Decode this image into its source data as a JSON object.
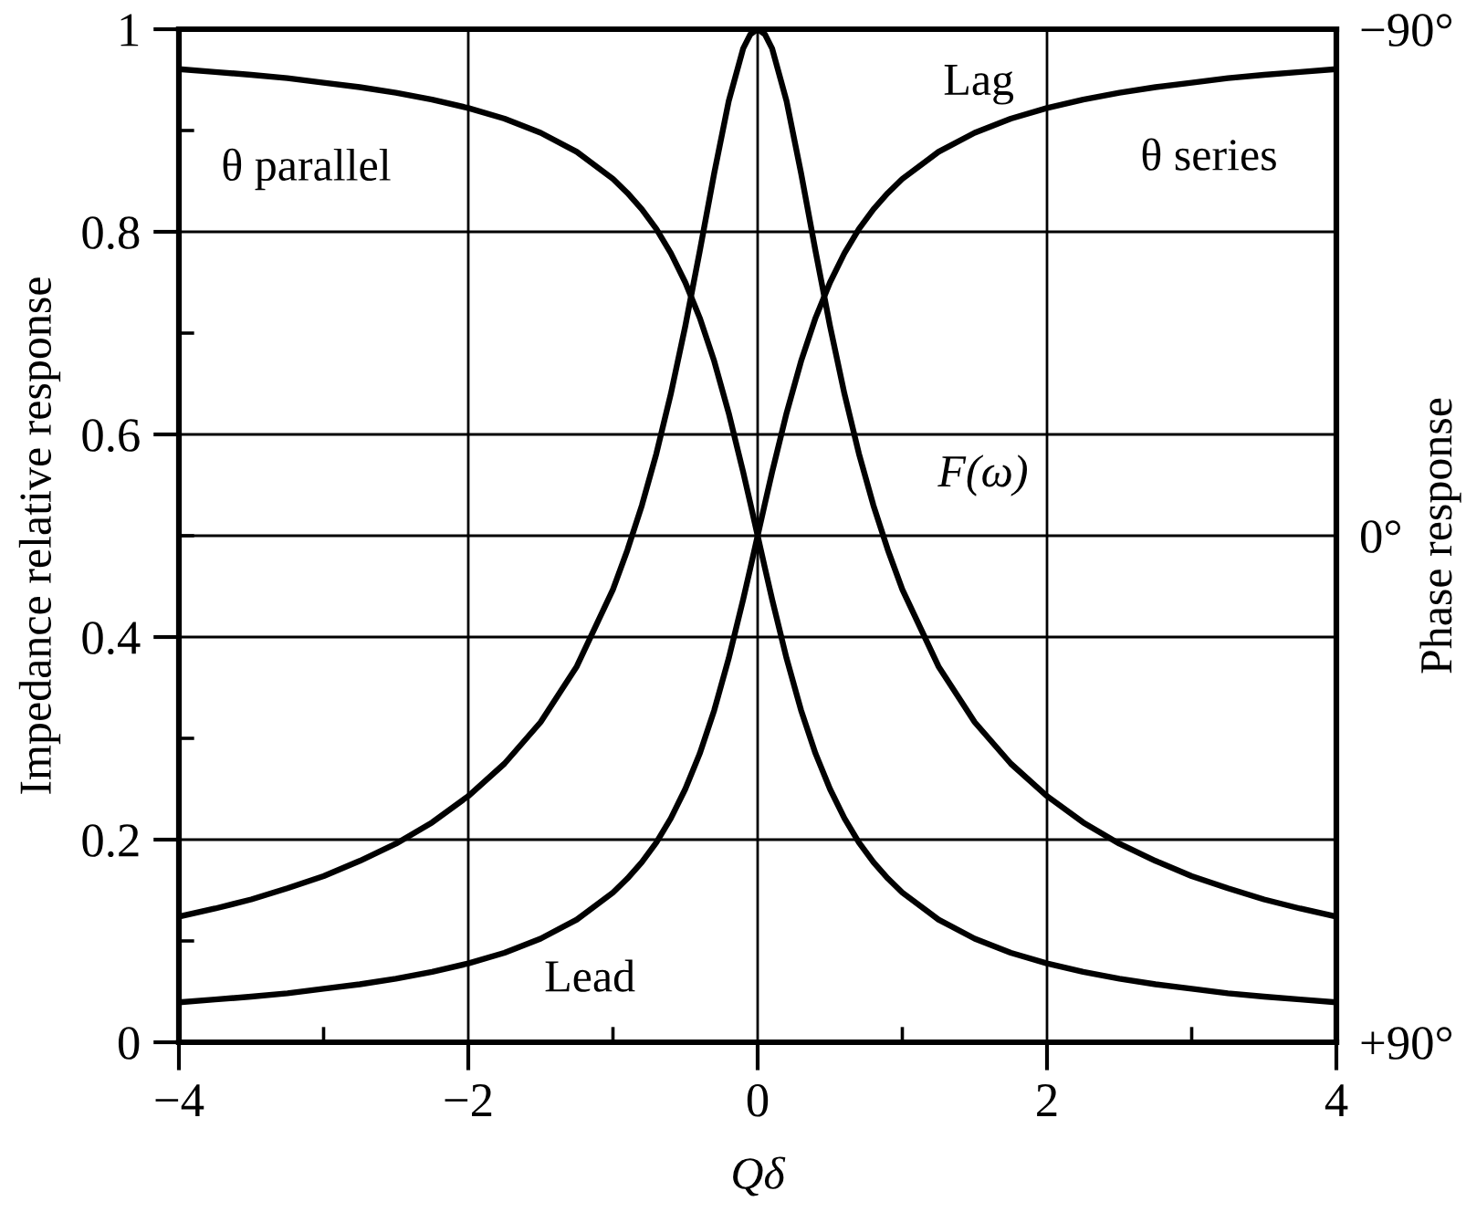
{
  "chart_data": {
    "type": "line",
    "xlabel": "Qδ",
    "ylabel": "Impedance relative response",
    "y2label": "Phase response",
    "x": [
      -4,
      -3.75,
      -3.5,
      -3.25,
      -3,
      -2.75,
      -2.5,
      -2.25,
      -2,
      -1.75,
      -1.5,
      -1.25,
      -1,
      -0.9,
      -0.8,
      -0.7,
      -0.6,
      -0.5,
      -0.4,
      -0.3,
      -0.2,
      -0.1,
      -0.05,
      0,
      0.05,
      0.1,
      0.2,
      0.3,
      0.4,
      0.5,
      0.6,
      0.7,
      0.8,
      0.9,
      1,
      1.25,
      1.5,
      1.75,
      2,
      2.25,
      2.5,
      2.75,
      3,
      3.25,
      3.5,
      3.75,
      4
    ],
    "series": [
      {
        "name": "F(ω)",
        "color": "#000000",
        "values": [
          0.124,
          0.132,
          0.141,
          0.152,
          0.164,
          0.179,
          0.196,
          0.217,
          0.243,
          0.275,
          0.316,
          0.371,
          0.447,
          0.486,
          0.53,
          0.581,
          0.64,
          0.707,
          0.781,
          0.858,
          0.929,
          0.981,
          0.995,
          1,
          0.995,
          0.981,
          0.929,
          0.858,
          0.781,
          0.707,
          0.64,
          0.581,
          0.53,
          0.486,
          0.447,
          0.371,
          0.316,
          0.275,
          0.243,
          0.217,
          0.196,
          0.179,
          0.164,
          0.152,
          0.141,
          0.132,
          0.124
        ]
      },
      {
        "name": "θ parallel",
        "color": "#000000",
        "axis": "y2",
        "values": [
          -82.9,
          -82.4,
          -81.9,
          -81.3,
          -80.5,
          -79.7,
          -78.7,
          -77.5,
          -76.0,
          -74.1,
          -71.6,
          -68.2,
          -63.4,
          -60.9,
          -58.0,
          -54.5,
          -50.2,
          -45.0,
          -38.7,
          -31.0,
          -21.8,
          -11.3,
          -5.7,
          0,
          5.7,
          11.3,
          21.8,
          31.0,
          38.7,
          45.0,
          50.2,
          54.5,
          58.0,
          60.9,
          63.4,
          68.2,
          71.6,
          74.1,
          76.0,
          77.5,
          78.7,
          79.7,
          80.5,
          81.3,
          81.9,
          82.4,
          82.9
        ]
      },
      {
        "name": "θ series",
        "color": "#000000",
        "axis": "y2",
        "values": [
          82.9,
          82.4,
          81.9,
          81.3,
          80.5,
          79.7,
          78.7,
          77.5,
          76.0,
          74.1,
          71.6,
          68.2,
          63.4,
          60.9,
          58.0,
          54.5,
          50.2,
          45.0,
          38.7,
          31.0,
          21.8,
          11.3,
          5.7,
          0,
          -5.7,
          -11.3,
          -21.8,
          -31.0,
          -38.7,
          -45.0,
          -50.2,
          -54.5,
          -58.0,
          -60.9,
          -63.4,
          -68.2,
          -71.6,
          -74.1,
          -76.0,
          -77.5,
          -78.7,
          -79.7,
          -80.5,
          -81.3,
          -81.9,
          -82.4,
          -82.9
        ]
      }
    ],
    "xlim": [
      -4,
      4
    ],
    "xticks": [
      {
        "value": -4,
        "label": "−4"
      },
      {
        "value": -3,
        "label": null
      },
      {
        "value": -2,
        "label": "−2"
      },
      {
        "value": -1,
        "label": null
      },
      0,
      {
        "value": 1,
        "label": null
      },
      2,
      {
        "value": 3,
        "label": null
      },
      4
    ],
    "ylim": [
      0,
      1
    ],
    "yticks": [
      0,
      {
        "value": 0.1,
        "label": null
      },
      0.2,
      {
        "value": 0.3,
        "label": null
      },
      0.4,
      {
        "value": 0.5,
        "label": null
      },
      0.6,
      {
        "value": 0.7,
        "label": null
      },
      0.8,
      {
        "value": 0.9,
        "label": null
      },
      1
    ],
    "y2lim": [
      90,
      -90
    ],
    "y2ticks": [
      {
        "value": -90,
        "label": "−90°"
      },
      {
        "value": 0,
        "label": "0°"
      },
      {
        "value": 90,
        "label": "+90°"
      }
    ],
    "grid": true,
    "annotations": [
      "Lag",
      "Lead"
    ]
  }
}
